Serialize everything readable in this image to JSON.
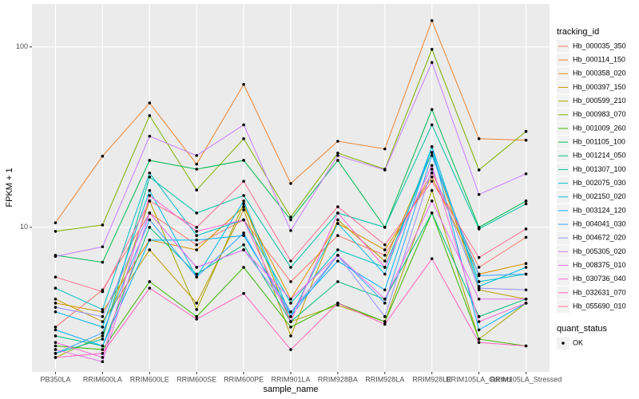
{
  "chart_data": {
    "type": "line",
    "x_label": "sample_name",
    "y_label": "FPKM + 1",
    "log_scale": true,
    "grid": true,
    "legend_position": "right",
    "legend_title": "tracking_id",
    "point_legend_title": "quant_status",
    "point_legend_label": "OK",
    "point_color": "#000000",
    "categories": [
      "PB350LA",
      "RRIM600LA",
      "RRIM600LE",
      "RRIM600SE",
      "RRIM600PE",
      "RRIM901LA",
      "RRIM928BA",
      "RRIM928LA",
      "RRIM928LE",
      "RRIM105LA_Control",
      "RRIM105LA_Stressed"
    ],
    "ylim": [
      1.58,
      173
    ],
    "yticks": [
      10,
      100
    ],
    "series": [
      {
        "name": "Hb_000035_350",
        "color": "#F8766D",
        "values": [
          2.8,
          4.5,
          12,
          8,
          11,
          5,
          9,
          7,
          20,
          6,
          8.8
        ]
      },
      {
        "name": "Hb_000114_150",
        "color": "#EA8331",
        "values": [
          10.6,
          24.8,
          48.9,
          22.4,
          62,
          17.5,
          30,
          27.2,
          140,
          31,
          30.4
        ]
      },
      {
        "name": "Hb_000358_020",
        "color": "#D89000",
        "values": [
          3.8,
          3.4,
          8.5,
          7.5,
          13,
          4,
          10.5,
          7.5,
          19,
          5.5,
          6.3
        ]
      },
      {
        "name": "Hb_000397_150",
        "color": "#C09B00",
        "values": [
          4,
          3,
          7.5,
          3.8,
          12.5,
          2.5,
          11,
          6.5,
          26,
          4.5,
          4
        ]
      },
      {
        "name": "Hb_000599_210",
        "color": "#A3A500",
        "values": [
          1.9,
          2.5,
          14,
          3.5,
          13.5,
          3,
          3.7,
          3,
          16,
          2.4,
          3.8
        ]
      },
      {
        "name": "Hb_000983_070",
        "color": "#7CAE00",
        "values": [
          9.5,
          10.3,
          41.6,
          16.1,
          31,
          11.4,
          25.8,
          21,
          97,
          20.8,
          34
        ]
      },
      {
        "name": "Hb_001009_260",
        "color": "#39B600",
        "values": [
          2.2,
          2.1,
          5,
          3.2,
          6,
          2.8,
          3.8,
          3,
          12,
          2.4,
          2.2
        ]
      },
      {
        "name": "Hb_001105_100",
        "color": "#00BB4E",
        "values": [
          7,
          6.4,
          23.5,
          21,
          23.5,
          11,
          23.5,
          10,
          45,
          10,
          14
        ]
      },
      {
        "name": "Hb_001214_050",
        "color": "#00BF7D",
        "values": [
          2.5,
          2.2,
          10,
          5.5,
          8,
          3,
          5,
          4,
          12,
          3.2,
          4
        ]
      },
      {
        "name": "Hb_001307_100",
        "color": "#00C1A3",
        "values": [
          2,
          2.4,
          19,
          12,
          15,
          6,
          12,
          10,
          37,
          9.8,
          13.5
        ]
      },
      {
        "name": "Hb_002075_030",
        "color": "#00BFC4",
        "values": [
          4.6,
          3.5,
          20,
          9,
          11,
          3.8,
          7.5,
          6,
          26,
          5,
          5.5
        ]
      },
      {
        "name": "Hb_002150_020",
        "color": "#00BAE0",
        "values": [
          3.4,
          2.8,
          16,
          5.3,
          14,
          3.2,
          10.5,
          5.5,
          28,
          4.7,
          6
        ]
      },
      {
        "name": "Hb_003124_120",
        "color": "#00B0F6",
        "values": [
          2.7,
          2.2,
          8.5,
          8.5,
          9,
          3.4,
          6.5,
          4.5,
          28,
          2.7,
          3.8
        ]
      },
      {
        "name": "Hb_004041_030",
        "color": "#35A2FF",
        "values": [
          2,
          2.6,
          11,
          5.3,
          9.3,
          3.2,
          7,
          3.8,
          25,
          5.4,
          5.5
        ]
      },
      {
        "name": "Hb_004672_020",
        "color": "#9590FF",
        "values": [
          3.6,
          3.2,
          12,
          6,
          7.5,
          3.4,
          7,
          3.2,
          21,
          4.6,
          4.5
        ]
      },
      {
        "name": "Hb_005305_020",
        "color": "#C77CFF",
        "values": [
          6.9,
          7.8,
          32,
          25,
          37,
          9.6,
          25,
          20.8,
          82,
          15.2,
          19.8
        ]
      },
      {
        "name": "Hb_008375_010",
        "color": "#E76BF3",
        "values": [
          2.1,
          1.8,
          12,
          6,
          7.5,
          4,
          7,
          4,
          14,
          4,
          4
        ]
      },
      {
        "name": "Hb_030736_040",
        "color": "#FA62DB",
        "values": [
          2.3,
          1.9,
          15,
          9.5,
          11,
          3,
          12,
          6,
          22,
          3,
          3.8
        ]
      },
      {
        "name": "Hb_032631_070",
        "color": "#FF62BC",
        "values": [
          1.9,
          2,
          4.6,
          3.1,
          4.3,
          2.1,
          3.8,
          2.9,
          6.7,
          2.3,
          2.2
        ]
      },
      {
        "name": "Hb_055690_010",
        "color": "#FF6C91",
        "values": [
          5.3,
          4.4,
          14,
          10,
          18,
          6.5,
          13,
          8,
          18,
          6.8,
          9.8
        ]
      }
    ]
  }
}
